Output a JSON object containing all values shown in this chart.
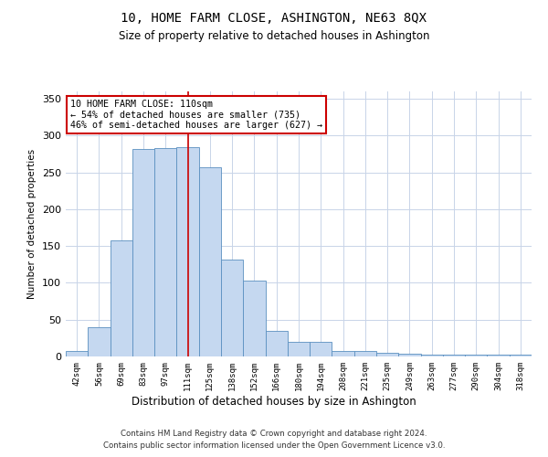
{
  "title": "10, HOME FARM CLOSE, ASHINGTON, NE63 8QX",
  "subtitle": "Size of property relative to detached houses in Ashington",
  "xlabel": "Distribution of detached houses by size in Ashington",
  "ylabel": "Number of detached properties",
  "categories": [
    "42sqm",
    "56sqm",
    "69sqm",
    "83sqm",
    "97sqm",
    "111sqm",
    "125sqm",
    "138sqm",
    "152sqm",
    "166sqm",
    "180sqm",
    "194sqm",
    "208sqm",
    "221sqm",
    "235sqm",
    "249sqm",
    "263sqm",
    "277sqm",
    "290sqm",
    "304sqm",
    "318sqm"
  ],
  "values": [
    8,
    40,
    158,
    282,
    283,
    284,
    257,
    132,
    103,
    35,
    20,
    20,
    8,
    8,
    5,
    4,
    3,
    3,
    2,
    2,
    2
  ],
  "bar_color": "#c5d8f0",
  "bar_edge_color": "#5a8fc0",
  "highlight_index": 5,
  "highlight_line_color": "#cc0000",
  "ylim": [
    0,
    360
  ],
  "yticks": [
    0,
    50,
    100,
    150,
    200,
    250,
    300,
    350
  ],
  "annotation_text": "10 HOME FARM CLOSE: 110sqm\n← 54% of detached houses are smaller (735)\n46% of semi-detached houses are larger (627) →",
  "annotation_box_color": "#ffffff",
  "annotation_box_edge": "#cc0000",
  "footer_line1": "Contains HM Land Registry data © Crown copyright and database right 2024.",
  "footer_line2": "Contains public sector information licensed under the Open Government Licence v3.0.",
  "background_color": "#ffffff",
  "grid_color": "#c8d4e8"
}
